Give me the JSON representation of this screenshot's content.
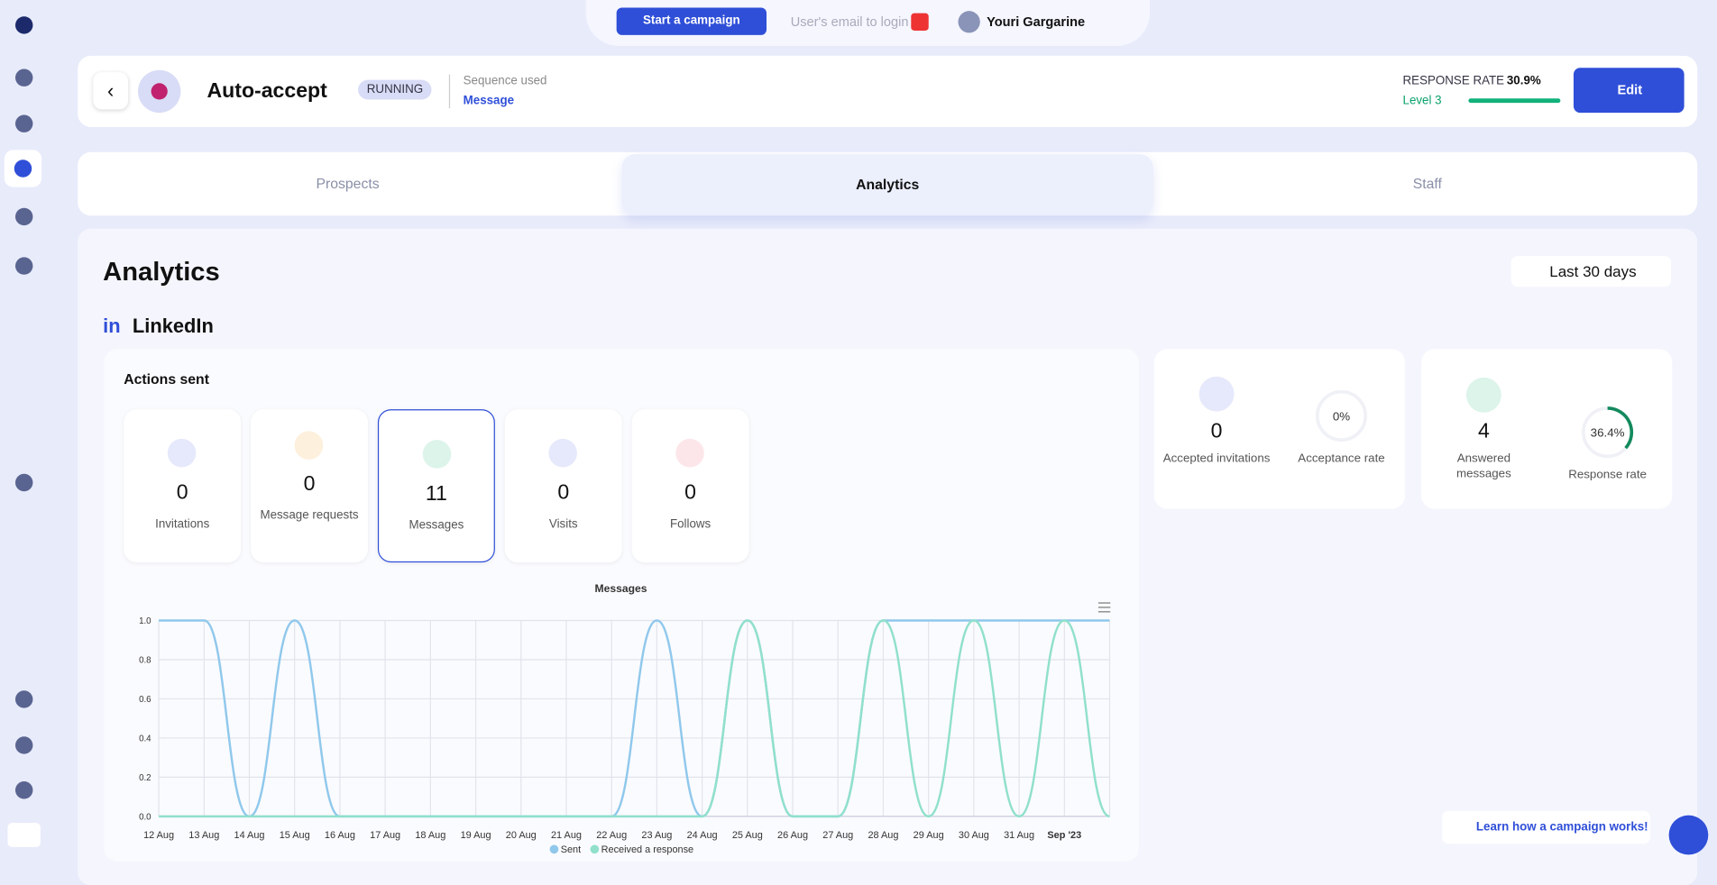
{
  "topbar": {
    "start_campaign": "Start a campaign",
    "email_login": "User's email to login",
    "user": "Youri Gargarine"
  },
  "header": {
    "title": "Auto-accept",
    "status": "RUNNING",
    "sequence_label": "Sequence used",
    "sequence": "Message",
    "response_rate_label": "RESPONSE RATE",
    "response_rate": "30.9%",
    "level": "Level 3",
    "edit": "Edit"
  },
  "tabs": [
    "Prospects",
    "Analytics",
    "Staff"
  ],
  "analytics": {
    "title": "Analytics",
    "period": "Last 30 days",
    "section": "LinkedIn",
    "actions_title": "Actions sent",
    "actions": [
      {
        "value": "0",
        "label": "Invitations"
      },
      {
        "value": "0",
        "label": "Message requests"
      },
      {
        "value": "11",
        "label": "Messages"
      },
      {
        "value": "0",
        "label": "Visits"
      },
      {
        "value": "0",
        "label": "Follows"
      }
    ],
    "stats": [
      {
        "value": "0",
        "label": "Accepted invitations"
      },
      {
        "rate": {
          "value": 0,
          "label": "0%"
        },
        "label": "Acceptance rate"
      },
      {
        "value": "4",
        "label": "Answered messages"
      },
      {
        "rate": {
          "value": 36.4,
          "label": "36.4%"
        },
        "label": "Response rate"
      }
    ]
  },
  "help": "Learn how a campaign works!",
  "chart_data": {
    "type": "line",
    "title": "Messages",
    "categories": [
      "12 Aug",
      "13 Aug",
      "14 Aug",
      "15 Aug",
      "16 Aug",
      "17 Aug",
      "18 Aug",
      "19 Aug",
      "20 Aug",
      "21 Aug",
      "22 Aug",
      "23 Aug",
      "24 Aug",
      "25 Aug",
      "26 Aug",
      "27 Aug",
      "28 Aug",
      "29 Aug",
      "30 Aug",
      "31 Aug",
      "Sep '23",
      null
    ],
    "series": [
      {
        "name": "Sent",
        "color": "#90c8ec",
        "values": [
          1,
          1,
          0,
          1,
          0,
          0,
          0,
          0,
          0,
          0,
          0,
          1,
          0,
          1,
          0,
          0,
          1,
          1,
          1,
          1,
          1,
          1
        ]
      },
      {
        "name": "Received a response",
        "color": "#90e0cc",
        "values": [
          0,
          0,
          0,
          0,
          0,
          0,
          0,
          0,
          0,
          0,
          0,
          0,
          0,
          1,
          0,
          0,
          1,
          0,
          1,
          0,
          1,
          0
        ]
      }
    ],
    "ylim": [
      0,
      1
    ],
    "yticks": [
      {
        "value": 0,
        "label": "0.0"
      },
      {
        "value": 0.2,
        "label": "0.2"
      },
      {
        "value": 0.4,
        "label": "0.4"
      },
      {
        "value": 0.6,
        "label": "0.6"
      },
      {
        "value": 0.8,
        "label": "0.8"
      },
      {
        "value": 1,
        "label": "1.0"
      }
    ],
    "grid": true
  }
}
